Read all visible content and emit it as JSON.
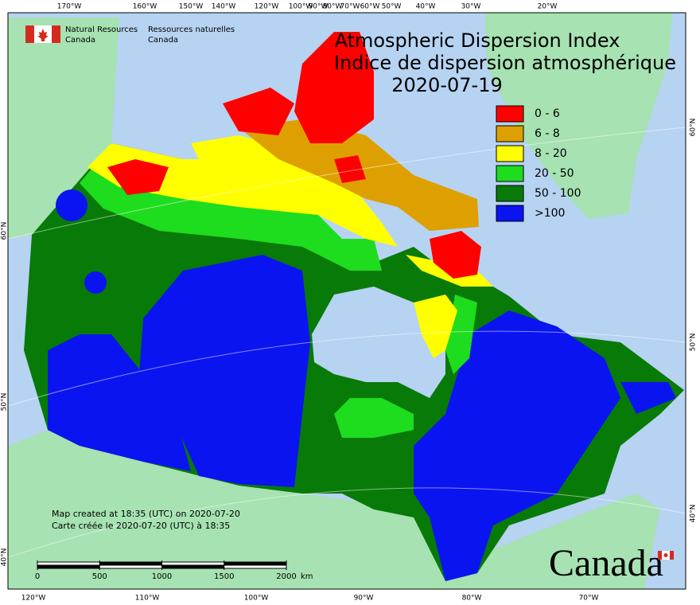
{
  "header": {
    "agency_en": "Natural Resources",
    "agency_en_country": "Canada",
    "agency_fr": "Ressources naturelles",
    "agency_fr_country": "Canada"
  },
  "title": {
    "en": "Atmospheric Dispersion Index",
    "fr": "Indice de dispersion atmosphérique",
    "date": "2020-07-19"
  },
  "legend": [
    {
      "label": "0 - 6",
      "color": "#ff0000"
    },
    {
      "label": "6 - 8",
      "color": "#dea000"
    },
    {
      "label": "8 - 20",
      "color": "#ffff00"
    },
    {
      "label": "20 - 50",
      "color": "#1edc1e"
    },
    {
      "label": "50 - 100",
      "color": "#087a08"
    },
    {
      "label": ">100",
      "color": "#0a14f0"
    }
  ],
  "graticule": {
    "top": [
      "170°W",
      "160°W",
      "150°W",
      "140°W",
      "120°W",
      "100°W",
      "90°W",
      "80°W",
      "70°W",
      "60°W",
      "50°W",
      "40°W",
      "30°W",
      "20°W"
    ],
    "bottom": [
      "120°W",
      "110°W",
      "100°W",
      "90°W",
      "80°W",
      "70°W"
    ],
    "left": [
      "60°N",
      "50°N",
      "40°N"
    ],
    "right": [
      "60°N",
      "50°N",
      "40°N"
    ]
  },
  "scale_bar": {
    "labels": [
      "0",
      "500",
      "1000",
      "1500",
      "2000"
    ],
    "unit": "km"
  },
  "footer": {
    "created_en": "Map created at 18:35 (UTC) on 2020-07-20",
    "created_fr": "Carte créée le 2020-07-20 (UTC) à 18:35"
  },
  "wordmark": "Canada"
}
